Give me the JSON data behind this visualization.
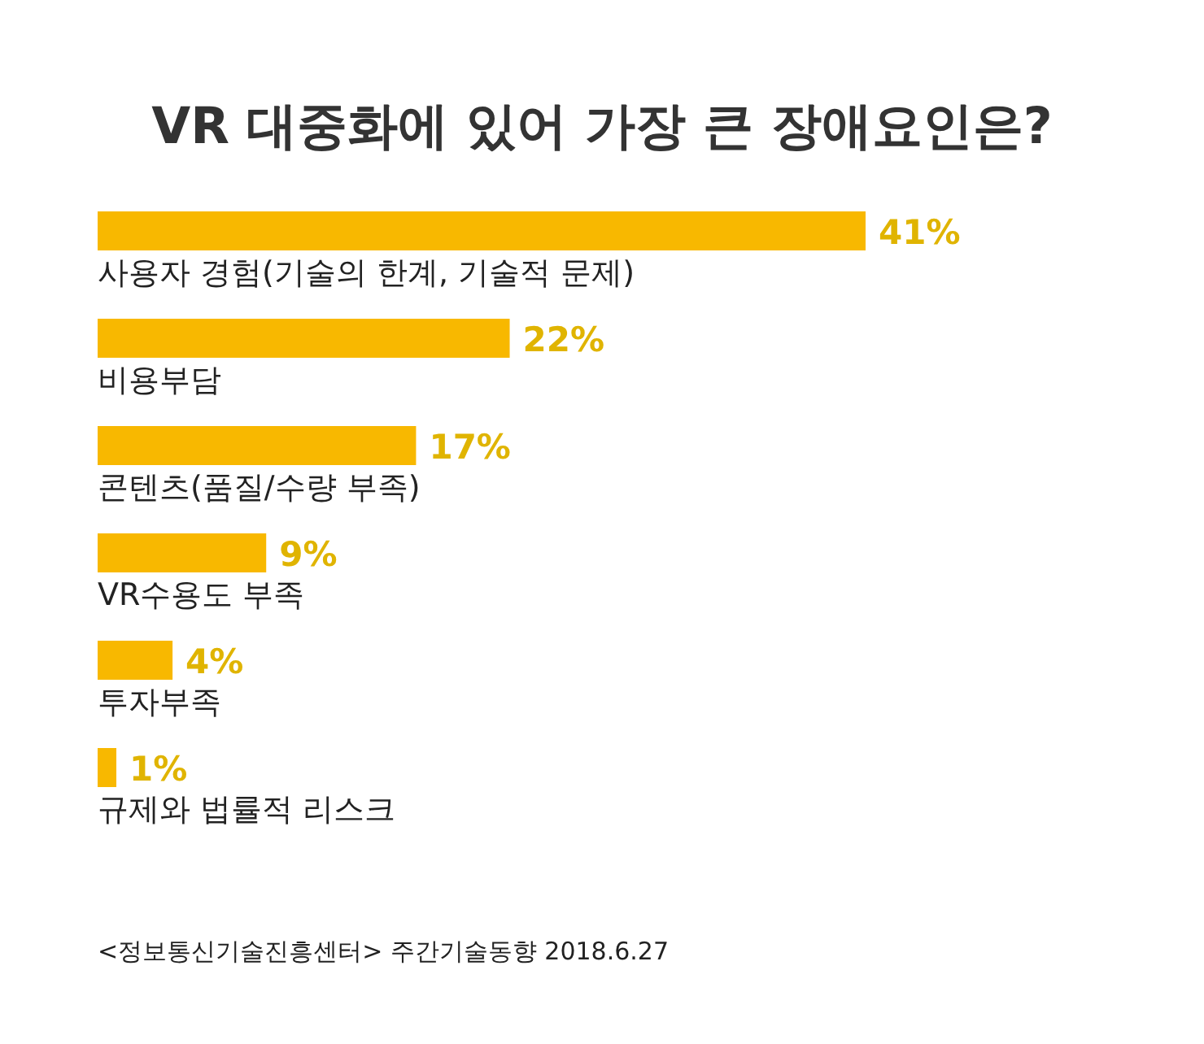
{
  "chart_data": {
    "type": "bar",
    "orientation": "horizontal",
    "title": "VR 대중화에 있어 가장 큰 장애요인은?",
    "categories": [
      "사용자 경험(기술의 한계, 기술적 문제)",
      "비용부담",
      "콘텐츠(품질/수량 부족)",
      "VR수용도 부족",
      "투자부족",
      "규제와 법률적 리스크"
    ],
    "values": [
      41,
      22,
      17,
      9,
      4,
      1
    ],
    "color": "#f8b800",
    "value_labels": [
      "41%",
      "22%",
      "17%",
      "9%",
      "4%",
      "1%"
    ],
    "annotations": [
      "<정보통신기술진흥센터>  주간기술동향  2018.6.27"
    ]
  }
}
